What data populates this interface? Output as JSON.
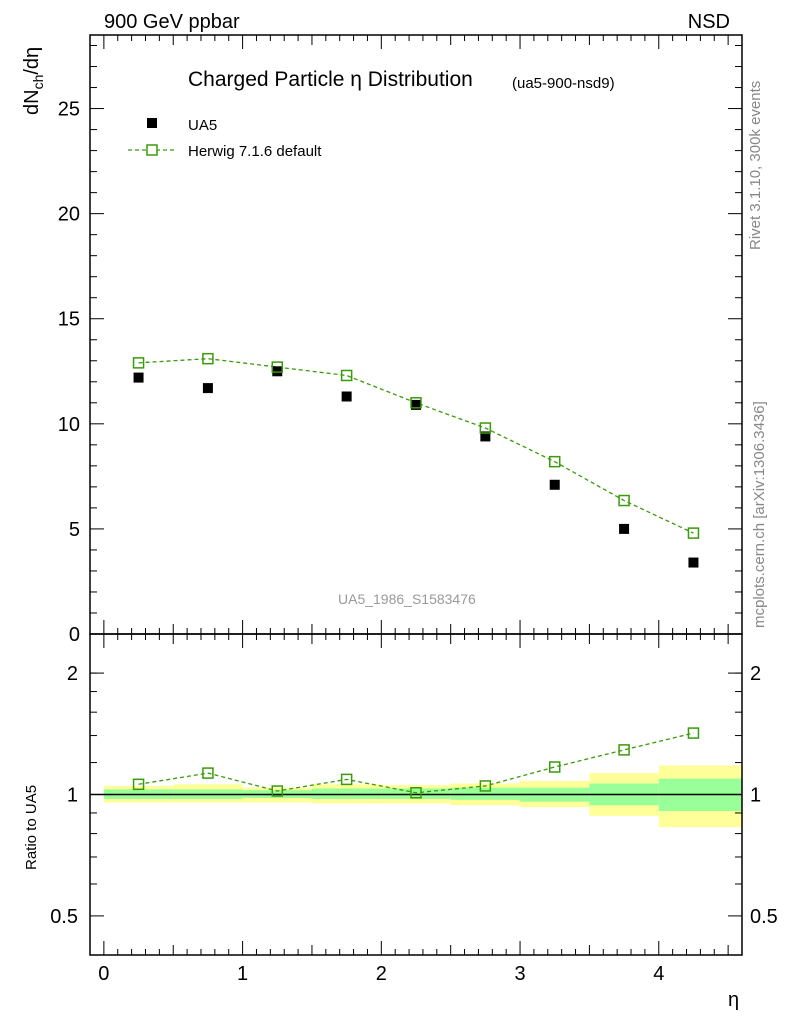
{
  "header": {
    "left": "900 GeV ppbar",
    "right": "NSD"
  },
  "side_labels": {
    "rivet": "Rivet 3.1.10,  300k events",
    "mcplots": "mcplots.cern.ch [arXiv:1306.3436]"
  },
  "colors": {
    "data": "#000000",
    "mc": "#3a9a0a",
    "band_outer": "#ffff99",
    "band_inner": "#99ff99"
  },
  "chart_data": [
    {
      "type": "scatter",
      "title": "Charged Particle η Distribution",
      "subtitle": "(ua5-900-nsd9)",
      "ylabel": "dN_ch/dη",
      "ylabel_main": "dN",
      "ylabel_sub": "ch",
      "ylabel_tail": "/dη",
      "watermark": "UA5_1986_S1583476",
      "xlim": [
        -0.1,
        4.6
      ],
      "ylim": [
        0,
        28.5
      ],
      "yticks": [
        0,
        5,
        10,
        15,
        20,
        25
      ],
      "ytick_labels": [
        "0",
        "5",
        "10",
        "15",
        "20",
        "25"
      ],
      "legend_position": "top-left",
      "x": [
        0.25,
        0.75,
        1.25,
        1.75,
        2.25,
        2.75,
        3.25,
        3.75,
        4.25
      ],
      "series": [
        {
          "name": "UA5",
          "marker": "filled-square",
          "values": [
            12.2,
            11.7,
            12.5,
            11.3,
            10.9,
            9.4,
            7.1,
            5.0,
            3.4
          ]
        },
        {
          "name": "Herwig 7.1.6 default",
          "marker": "open-square-dashed",
          "values": [
            12.9,
            13.1,
            12.7,
            12.3,
            11.0,
            9.8,
            8.2,
            6.35,
            4.8
          ]
        }
      ]
    },
    {
      "type": "scatter",
      "ylabel": "Ratio to UA5",
      "xlabel": "η",
      "yscale": "log",
      "xlim": [
        -0.1,
        4.6
      ],
      "ylim": [
        0.4,
        2.5
      ],
      "yticks": [
        0.5,
        1,
        2
      ],
      "ytick_labels": [
        "0.5",
        "1",
        "2"
      ],
      "xticks": [
        0,
        1,
        2,
        3,
        4
      ],
      "xtick_labels": [
        "0",
        "1",
        "2",
        "3",
        "4"
      ],
      "bin_edges": [
        0,
        0.5,
        1.0,
        1.5,
        2.0,
        2.5,
        3.0,
        3.5,
        4.0,
        4.6
      ],
      "band_outer": [
        [
          0.955,
          1.05
        ],
        [
          0.955,
          1.06
        ],
        [
          0.955,
          1.04
        ],
        [
          0.95,
          1.06
        ],
        [
          0.95,
          1.055
        ],
        [
          0.94,
          1.065
        ],
        [
          0.93,
          1.08
        ],
        [
          0.885,
          1.13
        ],
        [
          0.83,
          1.18
        ]
      ],
      "band_inner": [
        [
          0.975,
          1.03
        ],
        [
          0.975,
          1.03
        ],
        [
          0.98,
          1.025
        ],
        [
          0.975,
          1.035
        ],
        [
          0.975,
          1.035
        ],
        [
          0.97,
          1.04
        ],
        [
          0.96,
          1.04
        ],
        [
          0.94,
          1.065
        ],
        [
          0.91,
          1.095
        ]
      ],
      "x": [
        0.25,
        0.75,
        1.25,
        1.75,
        2.25,
        2.75,
        3.25,
        3.75,
        4.25
      ],
      "series": [
        {
          "name": "Herwig 7.1.6 default / UA5",
          "values": [
            1.06,
            1.13,
            1.02,
            1.09,
            1.01,
            1.05,
            1.17,
            1.29,
            1.42
          ]
        }
      ]
    }
  ]
}
